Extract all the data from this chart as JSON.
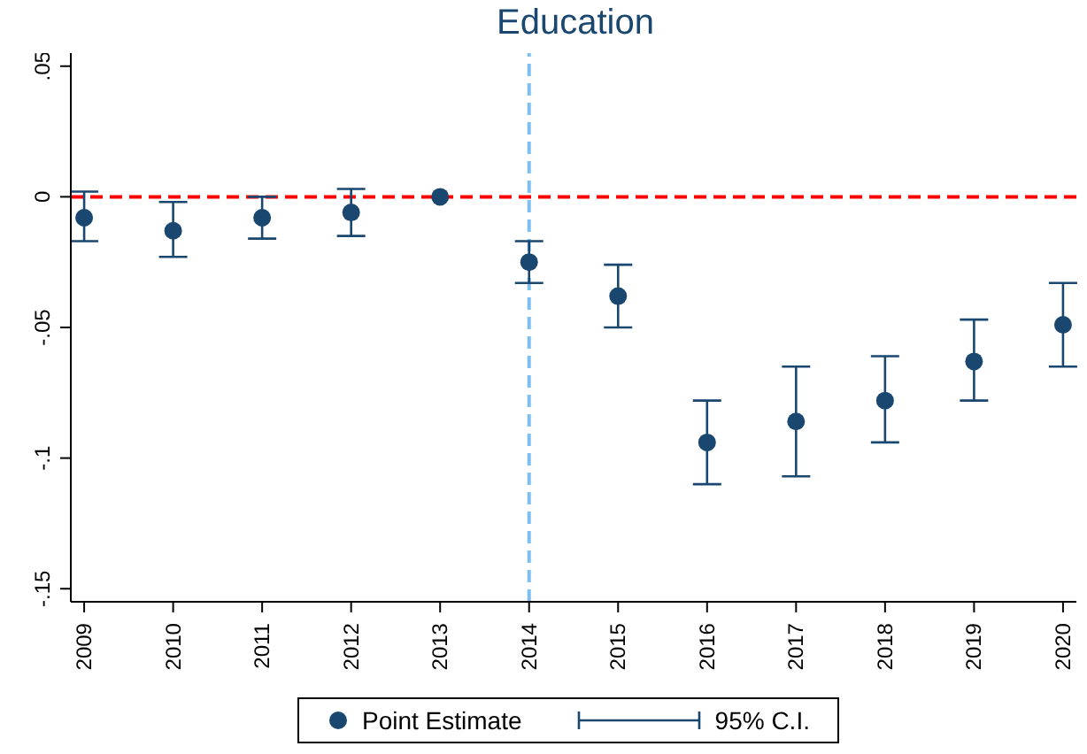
{
  "chart_data": {
    "type": "scatter",
    "title": "Education",
    "categories": [
      "2009",
      "2010",
      "2011",
      "2012",
      "2013",
      "2014",
      "2015",
      "2016",
      "2017",
      "2018",
      "2019",
      "2020"
    ],
    "series": [
      {
        "name": "Point Estimate",
        "color": "#1a476f",
        "values": [
          -0.008,
          -0.013,
          -0.008,
          -0.006,
          0,
          -0.025,
          -0.038,
          -0.094,
          -0.086,
          -0.078,
          -0.063,
          -0.049
        ],
        "errors": [
          [
            -0.017,
            0.002
          ],
          [
            -0.023,
            -0.002
          ],
          [
            -0.016,
            0.0
          ],
          [
            -0.015,
            0.003
          ],
          null,
          [
            -0.033,
            -0.017
          ],
          [
            -0.05,
            -0.026
          ],
          [
            -0.11,
            -0.078
          ],
          [
            -0.107,
            -0.065
          ],
          [
            -0.094,
            -0.061
          ],
          [
            -0.078,
            -0.047
          ],
          [
            -0.065,
            -0.033
          ]
        ]
      }
    ],
    "annotations": [
      "95% C.I."
    ],
    "ylim": [
      -0.155,
      0.055
    ],
    "yticks": [
      {
        "value": 0.05,
        "label": ".05"
      },
      {
        "value": 0,
        "label": "0"
      },
      {
        "value": -0.05,
        "label": "-.05"
      },
      {
        "value": -0.1,
        "label": "-.1"
      },
      {
        "value": -0.15,
        "label": "-.15"
      }
    ],
    "ref_lines": [
      {
        "axis": "y",
        "value": 0,
        "color": "#ff0000",
        "line_style": "dashed"
      },
      {
        "axis": "x",
        "value": "2014",
        "color": "#7fbfef",
        "line_style": "dashed"
      }
    ],
    "marker": "circle",
    "legend": "bottom"
  }
}
